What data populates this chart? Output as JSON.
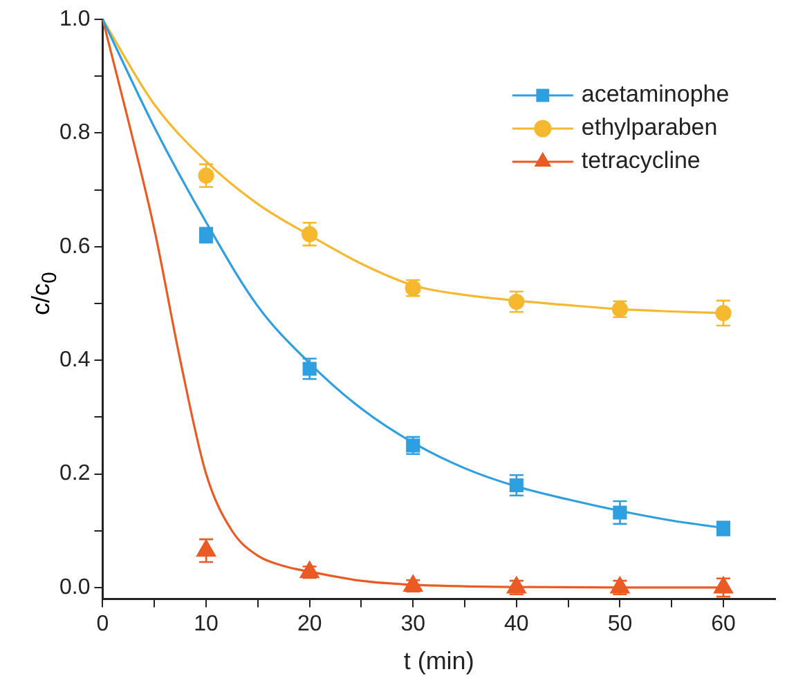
{
  "chart_data": {
    "type": "scatter",
    "xlabel": "t (min)",
    "ylabel": "c/c$_{0}$",
    "xlim": [
      0,
      65
    ],
    "xticks": [
      0,
      {
        "value": 5,
        "label": null
      },
      10,
      {
        "value": 15,
        "label": null
      },
      20,
      {
        "value": 25,
        "label": null
      },
      30,
      {
        "value": 35,
        "label": null
      },
      40,
      {
        "value": 45,
        "label": null
      },
      50,
      {
        "value": 55,
        "label": null
      },
      60
    ],
    "ylim": [
      -0.02,
      1.0
    ],
    "yticks": [
      "0.0",
      {
        "value": 0.1,
        "label": null
      },
      {
        "value": 0.2,
        "label": "0.2"
      },
      {
        "value": 0.3,
        "label": null
      },
      {
        "value": 0.4,
        "label": "0.4"
      },
      {
        "value": 0.5,
        "label": null
      },
      {
        "value": 0.6,
        "label": "0.6"
      },
      {
        "value": 0.7,
        "label": null
      },
      {
        "value": 0.8,
        "label": "0.8"
      },
      {
        "value": 0.9,
        "label": null
      },
      {
        "value": 1.0,
        "label": "1.0"
      }
    ],
    "grid": false,
    "legend": "top right",
    "series": [
      {
        "name": "acetaminophe",
        "marker": "square",
        "color": "#2e9fe0",
        "x": [
          10,
          20,
          30,
          40,
          50,
          60
        ],
        "values": [
          0.62,
          0.385,
          0.25,
          0.18,
          0.132,
          0.104
        ],
        "errors": [
          0.013,
          0.018,
          0.015,
          0.018,
          0.02,
          0.012
        ]
      },
      {
        "name": "ethylparaben",
        "marker": "circle",
        "color": "#f5b82e",
        "x": [
          10,
          20,
          30,
          40,
          50,
          60
        ],
        "values": [
          0.725,
          0.622,
          0.527,
          0.503,
          0.49,
          0.483
        ],
        "errors": [
          0.02,
          0.02,
          0.014,
          0.018,
          0.014,
          0.022
        ]
      },
      {
        "name": "tetracycline",
        "marker": "triangle",
        "color": "#ec5a24",
        "x": [
          10,
          20,
          30,
          40,
          50,
          60
        ],
        "values": [
          0.065,
          0.027,
          0.003,
          0.0,
          0.0,
          0.0
        ],
        "errors": [
          0.02,
          0.01,
          0.01,
          0.012,
          0.012,
          0.016
        ]
      },
      {
        "type": "line",
        "marker": "none",
        "color": "#2e9fe0",
        "x": [
          0,
          5,
          10,
          15,
          20,
          25,
          30,
          35,
          40,
          45,
          50,
          55,
          60
        ],
        "values": [
          1.0,
          0.81,
          0.643,
          0.495,
          0.395,
          0.315,
          0.255,
          0.21,
          0.178,
          0.155,
          0.135,
          0.118,
          0.105
        ]
      },
      {
        "type": "line",
        "marker": "none",
        "color": "#f5b82e",
        "x": [
          0,
          5,
          10,
          15,
          20,
          25,
          30,
          35,
          40,
          45,
          50,
          55,
          60
        ],
        "values": [
          1.0,
          0.85,
          0.75,
          0.675,
          0.62,
          0.57,
          0.532,
          0.515,
          0.505,
          0.497,
          0.49,
          0.486,
          0.483
        ]
      },
      {
        "type": "line",
        "marker": "none",
        "color": "#ec5a24",
        "x": [
          0,
          2.5,
          5,
          7.5,
          10,
          12.5,
          15,
          17.5,
          20,
          25,
          30,
          40,
          50,
          60
        ],
        "values": [
          1.0,
          0.82,
          0.63,
          0.4,
          0.2,
          0.1,
          0.056,
          0.038,
          0.028,
          0.012,
          0.005,
          0.001,
          0.0,
          0.0
        ]
      }
    ]
  }
}
